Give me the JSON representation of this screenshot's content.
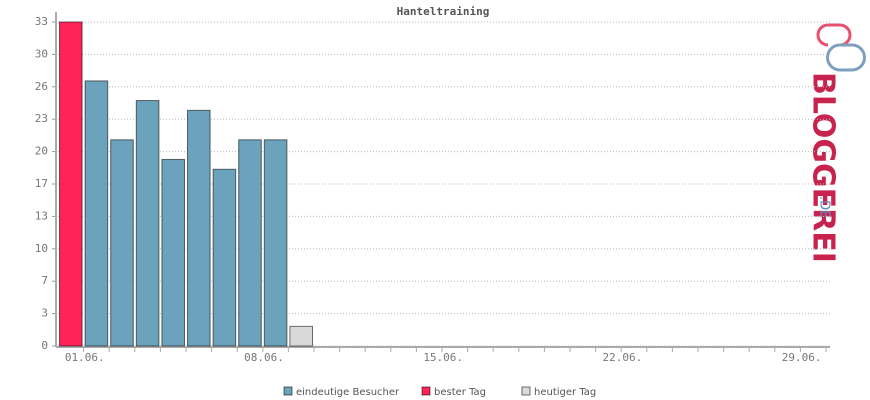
{
  "chart_data": {
    "type": "bar",
    "title": "Hanteltraining",
    "categories": [
      "01.06.",
      null,
      null,
      null,
      null,
      null,
      null,
      "08.06.",
      null,
      null,
      null,
      null,
      null,
      null,
      "15.06.",
      null,
      null,
      null,
      null,
      null,
      null,
      "22.06.",
      null,
      null,
      null,
      null,
      null,
      null,
      "29.06.",
      null
    ],
    "series": [
      {
        "name": "eindeutige Besucher",
        "color": "#6ba2bc",
        "values": [
          null,
          27,
          21,
          25,
          19,
          24,
          18,
          21,
          21,
          null,
          null,
          null,
          null,
          null,
          null,
          null,
          null,
          null,
          null,
          null,
          null,
          null,
          null,
          null,
          null,
          null,
          null,
          null,
          null,
          null
        ]
      },
      {
        "name": "bester Tag",
        "color": "#ff2358",
        "values": [
          33,
          null,
          null,
          null,
          null,
          null,
          null,
          null,
          null,
          null,
          null,
          null,
          null,
          null,
          null,
          null,
          null,
          null,
          null,
          null,
          null,
          null,
          null,
          null,
          null,
          null,
          null,
          null,
          null,
          null
        ]
      },
      {
        "name": "heutiger Tag",
        "color": "#d9d9d9",
        "values": [
          null,
          null,
          null,
          null,
          null,
          null,
          null,
          null,
          null,
          2,
          null,
          null,
          null,
          null,
          null,
          null,
          null,
          null,
          null,
          null,
          null,
          null,
          null,
          null,
          null,
          null,
          null,
          null,
          null,
          null
        ]
      }
    ],
    "ylim": [
      0,
      33
    ],
    "yticks": [
      0,
      {
        "value": 3.3,
        "label": "3"
      },
      {
        "value": 6.6,
        "label": "7"
      },
      {
        "value": 9.9,
        "label": "10"
      },
      {
        "value": 13.2,
        "label": "13"
      },
      {
        "value": 16.5,
        "label": "17"
      },
      {
        "value": 19.8,
        "label": "20"
      },
      {
        "value": 23.1,
        "label": "23"
      },
      {
        "value": 26.4,
        "label": "26"
      },
      {
        "value": 29.7,
        "label": "30"
      },
      33
    ],
    "grid": true
  },
  "branding": {
    "logo_text": "BLOGGEREI",
    "logo_suffix": ".DE"
  }
}
